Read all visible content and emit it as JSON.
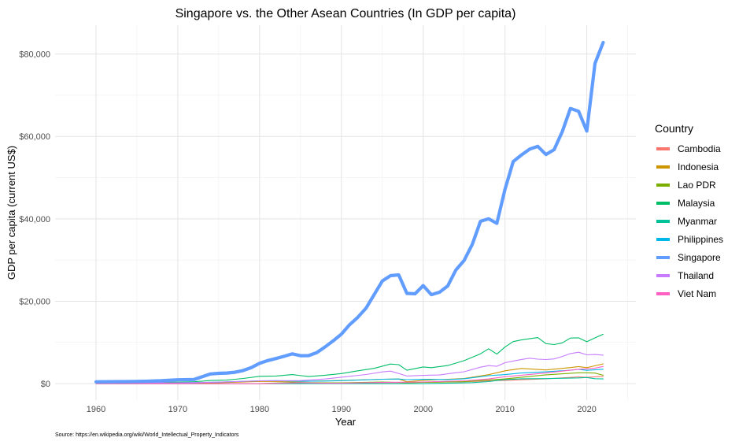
{
  "chart_data": {
    "type": "line",
    "title": "Singapore vs. the Other Asean Countries (In GDP per capita)",
    "xlabel": "Year",
    "ylabel": "GDP per capita (current US$)",
    "source": "Source: https://en.wikipedia.org/wiki/World_Intellectual_Property_Indicators",
    "legend_title": "Country",
    "legend_position": "right",
    "grid": true,
    "xlim": [
      1955,
      2026
    ],
    "ylim": [
      -4000,
      87000
    ],
    "x_ticks": [
      1960,
      1970,
      1980,
      1990,
      2000,
      2010,
      2020
    ],
    "x_tick_labels": [
      "1960",
      "1970",
      "1980",
      "1990",
      "2000",
      "2010",
      "2020"
    ],
    "y_ticks": [
      0,
      20000,
      40000,
      60000,
      80000
    ],
    "y_tick_labels": [
      "$0",
      "$20,000",
      "$40,000",
      "$60,000",
      "$80,000"
    ],
    "series": [
      {
        "name": "Cambodia",
        "color": "#F8766D",
        "points": [
          [
            1960,
            0
          ],
          [
            1970,
            0
          ],
          [
            1975,
            0
          ],
          [
            1980,
            0
          ],
          [
            1985,
            0
          ],
          [
            1993,
            250
          ],
          [
            1998,
            270
          ],
          [
            2000,
            300
          ],
          [
            2005,
            450
          ],
          [
            2010,
            790
          ],
          [
            2015,
            1160
          ],
          [
            2019,
            1640
          ],
          [
            2020,
            1550
          ],
          [
            2022,
            1760
          ]
        ]
      },
      {
        "name": "Indonesia",
        "color": "#CD9600",
        "points": [
          [
            1960,
            60
          ],
          [
            1967,
            55
          ],
          [
            1970,
            80
          ],
          [
            1975,
            230
          ],
          [
            1980,
            540
          ],
          [
            1985,
            530
          ],
          [
            1990,
            770
          ],
          [
            1995,
            1060
          ],
          [
            1997,
            1130
          ],
          [
            1998,
            460
          ],
          [
            2000,
            780
          ],
          [
            2005,
            1260
          ],
          [
            2008,
            2170
          ],
          [
            2010,
            3120
          ],
          [
            2012,
            3690
          ],
          [
            2015,
            3330
          ],
          [
            2018,
            3900
          ],
          [
            2019,
            4140
          ],
          [
            2020,
            3870
          ],
          [
            2021,
            4330
          ],
          [
            2022,
            4790
          ]
        ]
      },
      {
        "name": "Lao PDR",
        "color": "#7CAE00",
        "points": [
          [
            1960,
            0
          ],
          [
            1980,
            0
          ],
          [
            1984,
            300
          ],
          [
            1988,
            200
          ],
          [
            1990,
            200
          ],
          [
            1995,
            380
          ],
          [
            1998,
            250
          ],
          [
            2000,
            320
          ],
          [
            2005,
            480
          ],
          [
            2010,
            1140
          ],
          [
            2015,
            2130
          ],
          [
            2019,
            2630
          ],
          [
            2020,
            2630
          ],
          [
            2021,
            2550
          ],
          [
            2022,
            2050
          ]
        ]
      },
      {
        "name": "Malaysia",
        "color": "#00BE67",
        "points": [
          [
            1960,
            230
          ],
          [
            1965,
            320
          ],
          [
            1970,
            360
          ],
          [
            1972,
            450
          ],
          [
            1974,
            760
          ],
          [
            1976,
            860
          ],
          [
            1978,
            1260
          ],
          [
            1980,
            1770
          ],
          [
            1982,
            1850
          ],
          [
            1984,
            2190
          ],
          [
            1986,
            1720
          ],
          [
            1988,
            2050
          ],
          [
            1990,
            2440
          ],
          [
            1992,
            3110
          ],
          [
            1994,
            3700
          ],
          [
            1996,
            4760
          ],
          [
            1997,
            4600
          ],
          [
            1998,
            3250
          ],
          [
            2000,
            4040
          ],
          [
            2001,
            3880
          ],
          [
            2003,
            4400
          ],
          [
            2005,
            5580
          ],
          [
            2007,
            7240
          ],
          [
            2008,
            8470
          ],
          [
            2009,
            7170
          ],
          [
            2010,
            8880
          ],
          [
            2011,
            10210
          ],
          [
            2012,
            10600
          ],
          [
            2014,
            11180
          ],
          [
            2015,
            9700
          ],
          [
            2016,
            9470
          ],
          [
            2017,
            9900
          ],
          [
            2018,
            11070
          ],
          [
            2019,
            11130
          ],
          [
            2020,
            10160
          ],
          [
            2021,
            11100
          ],
          [
            2022,
            11990
          ]
        ]
      },
      {
        "name": "Myanmar",
        "color": "#00C19A",
        "points": [
          [
            1960,
            0
          ],
          [
            1980,
            0
          ],
          [
            1990,
            0
          ],
          [
            2000,
            0
          ],
          [
            2004,
            150
          ],
          [
            2006,
            250
          ],
          [
            2008,
            500
          ],
          [
            2010,
            990
          ],
          [
            2012,
            1180
          ],
          [
            2015,
            1220
          ],
          [
            2019,
            1390
          ],
          [
            2020,
            1480
          ],
          [
            2021,
            1200
          ],
          [
            2022,
            1150
          ]
        ]
      },
      {
        "name": "Philippines",
        "color": "#00B8E7",
        "points": [
          [
            1960,
            250
          ],
          [
            1965,
            190
          ],
          [
            1970,
            190
          ],
          [
            1975,
            360
          ],
          [
            1980,
            680
          ],
          [
            1982,
            730
          ],
          [
            1985,
            560
          ],
          [
            1988,
            620
          ],
          [
            1990,
            720
          ],
          [
            1995,
            1060
          ],
          [
            1997,
            1120
          ],
          [
            1998,
            970
          ],
          [
            2000,
            1040
          ],
          [
            2003,
            990
          ],
          [
            2005,
            1190
          ],
          [
            2008,
            1920
          ],
          [
            2010,
            2200
          ],
          [
            2012,
            2580
          ],
          [
            2015,
            2870
          ],
          [
            2018,
            3250
          ],
          [
            2019,
            3480
          ],
          [
            2020,
            3220
          ],
          [
            2022,
            3500
          ]
        ]
      },
      {
        "name": "Singapore",
        "color": "#619CFF",
        "emphasis": true,
        "points": [
          [
            1960,
            430
          ],
          [
            1962,
            480
          ],
          [
            1964,
            490
          ],
          [
            1966,
            570
          ],
          [
            1968,
            700
          ],
          [
            1970,
            930
          ],
          [
            1972,
            1000
          ],
          [
            1974,
            2350
          ],
          [
            1975,
            2500
          ],
          [
            1976,
            2570
          ],
          [
            1977,
            2770
          ],
          [
            1978,
            3190
          ],
          [
            1979,
            3920
          ],
          [
            1980,
            4930
          ],
          [
            1981,
            5600
          ],
          [
            1982,
            6100
          ],
          [
            1983,
            6630
          ],
          [
            1984,
            7230
          ],
          [
            1985,
            6780
          ],
          [
            1986,
            6800
          ],
          [
            1987,
            7540
          ],
          [
            1988,
            8900
          ],
          [
            1989,
            10400
          ],
          [
            1990,
            12000
          ],
          [
            1991,
            14300
          ],
          [
            1992,
            16100
          ],
          [
            1993,
            18300
          ],
          [
            1994,
            21600
          ],
          [
            1995,
            24900
          ],
          [
            1996,
            26200
          ],
          [
            1997,
            26400
          ],
          [
            1998,
            21900
          ],
          [
            1999,
            21800
          ],
          [
            2000,
            23800
          ],
          [
            2001,
            21600
          ],
          [
            2002,
            22200
          ],
          [
            2003,
            23700
          ],
          [
            2004,
            27600
          ],
          [
            2005,
            29900
          ],
          [
            2006,
            33800
          ],
          [
            2007,
            39400
          ],
          [
            2008,
            40000
          ],
          [
            2009,
            38900
          ],
          [
            2010,
            47200
          ],
          [
            2011,
            53900
          ],
          [
            2012,
            55500
          ],
          [
            2013,
            56900
          ],
          [
            2014,
            57600
          ],
          [
            2015,
            55600
          ],
          [
            2016,
            56800
          ],
          [
            2017,
            61200
          ],
          [
            2018,
            66800
          ],
          [
            2019,
            66100
          ],
          [
            2020,
            61300
          ],
          [
            2021,
            77700
          ],
          [
            2022,
            82800
          ]
        ]
      },
      {
        "name": "Thailand",
        "color": "#C77CFF",
        "points": [
          [
            1960,
            100
          ],
          [
            1965,
            140
          ],
          [
            1970,
            190
          ],
          [
            1975,
            350
          ],
          [
            1980,
            680
          ],
          [
            1985,
            750
          ],
          [
            1988,
            1130
          ],
          [
            1990,
            1560
          ],
          [
            1993,
            2210
          ],
          [
            1995,
            2840
          ],
          [
            1996,
            3040
          ],
          [
            1997,
            2470
          ],
          [
            1998,
            1850
          ],
          [
            2000,
            2010
          ],
          [
            2002,
            2100
          ],
          [
            2004,
            2660
          ],
          [
            2005,
            2890
          ],
          [
            2007,
            3990
          ],
          [
            2008,
            4380
          ],
          [
            2009,
            4210
          ],
          [
            2010,
            5080
          ],
          [
            2011,
            5490
          ],
          [
            2012,
            5860
          ],
          [
            2013,
            6170
          ],
          [
            2014,
            5950
          ],
          [
            2015,
            5840
          ],
          [
            2016,
            5990
          ],
          [
            2017,
            6590
          ],
          [
            2018,
            7300
          ],
          [
            2019,
            7630
          ],
          [
            2020,
            7000
          ],
          [
            2021,
            7070
          ],
          [
            2022,
            6910
          ]
        ]
      },
      {
        "name": "Viet Nam",
        "color": "#FF61C3",
        "points": [
          [
            1960,
            0
          ],
          [
            1980,
            0
          ],
          [
            1985,
            230
          ],
          [
            1988,
            100
          ],
          [
            1990,
            100
          ],
          [
            1995,
            290
          ],
          [
            2000,
            390
          ],
          [
            2005,
            690
          ],
          [
            2008,
            1150
          ],
          [
            2010,
            1680
          ],
          [
            2015,
            2580
          ],
          [
            2019,
            3490
          ],
          [
            2020,
            3590
          ],
          [
            2021,
            3760
          ],
          [
            2022,
            4160
          ]
        ]
      }
    ]
  }
}
